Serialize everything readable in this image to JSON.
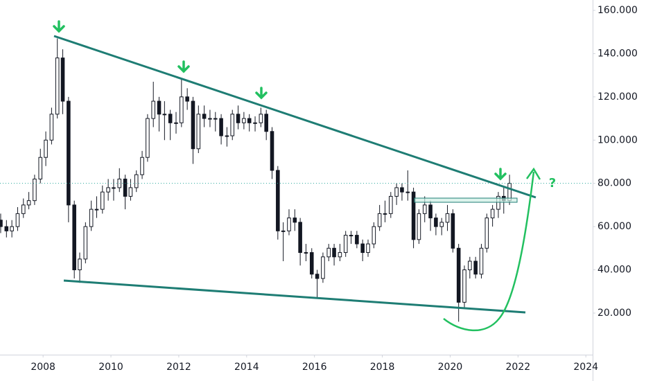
{
  "chart_data": {
    "type": "candlestick",
    "annotation": "?",
    "x": [
      2006.75,
      2006.92,
      2007.08,
      2007.25,
      2007.42,
      2007.58,
      2007.75,
      2007.92,
      2008.08,
      2008.25,
      2008.42,
      2008.58,
      2008.75,
      2008.92,
      2009.08,
      2009.25,
      2009.42,
      2009.58,
      2009.75,
      2009.92,
      2010.08,
      2010.25,
      2010.42,
      2010.58,
      2010.75,
      2010.92,
      2011.08,
      2011.25,
      2011.42,
      2011.58,
      2011.75,
      2011.92,
      2012.08,
      2012.25,
      2012.42,
      2012.58,
      2012.75,
      2012.92,
      2013.08,
      2013.25,
      2013.42,
      2013.58,
      2013.75,
      2013.92,
      2014.08,
      2014.25,
      2014.42,
      2014.58,
      2014.75,
      2014.92,
      2015.08,
      2015.25,
      2015.42,
      2015.58,
      2015.75,
      2015.92,
      2016.08,
      2016.25,
      2016.42,
      2016.58,
      2016.75,
      2016.92,
      2017.08,
      2017.25,
      2017.42,
      2017.58,
      2017.75,
      2017.92,
      2018.08,
      2018.25,
      2018.42,
      2018.58,
      2018.75,
      2018.92,
      2019.08,
      2019.25,
      2019.42,
      2019.58,
      2019.75,
      2019.92,
      2020.08,
      2020.25,
      2020.42,
      2020.58,
      2020.75,
      2020.92,
      2021.08,
      2021.25,
      2021.42,
      2021.58,
      2021.75
    ],
    "open": [
      63,
      60,
      58,
      60,
      66,
      70,
      72,
      82,
      92,
      100,
      112,
      138,
      118,
      70,
      40,
      45,
      60,
      68,
      68,
      76,
      78,
      78,
      82,
      74,
      78,
      84,
      92,
      110,
      118,
      112,
      112,
      108,
      108,
      120,
      118,
      96,
      112,
      110,
      110,
      110,
      102,
      102,
      112,
      108,
      110,
      108,
      108,
      112,
      104,
      86,
      58,
      58,
      64,
      62,
      48,
      48,
      38,
      36,
      46,
      50,
      46,
      48,
      56,
      56,
      52,
      48,
      52,
      60,
      66,
      66,
      74,
      78,
      76,
      76,
      54,
      66,
      70,
      64,
      60,
      62,
      66,
      50,
      25,
      40,
      44,
      38,
      50,
      64,
      68,
      74,
      72
    ],
    "high": [
      66,
      63,
      63,
      69,
      73,
      76,
      84,
      96,
      104,
      115,
      147,
      142,
      120,
      72,
      48,
      62,
      72,
      74,
      79,
      82,
      82,
      87,
      84,
      82,
      86,
      95,
      112,
      127,
      120,
      118,
      114,
      113,
      128,
      124,
      120,
      116,
      116,
      114,
      113,
      112,
      106,
      114,
      116,
      113,
      112,
      111,
      115,
      114,
      106,
      88,
      62,
      68,
      68,
      64,
      52,
      50,
      40,
      48,
      52,
      52,
      52,
      58,
      58,
      58,
      54,
      54,
      62,
      70,
      72,
      76,
      80,
      80,
      86,
      78,
      68,
      74,
      72,
      66,
      64,
      70,
      68,
      52,
      42,
      46,
      46,
      52,
      66,
      70,
      76,
      78,
      84
    ],
    "low": [
      57,
      55,
      55,
      58,
      64,
      68,
      70,
      80,
      88,
      98,
      110,
      112,
      62,
      36,
      34,
      43,
      58,
      64,
      66,
      72,
      72,
      76,
      68,
      72,
      76,
      82,
      90,
      106,
      104,
      100,
      100,
      103,
      106,
      114,
      89,
      94,
      106,
      106,
      104,
      98,
      97,
      100,
      105,
      105,
      104,
      104,
      106,
      100,
      82,
      54,
      44,
      56,
      58,
      42,
      44,
      36,
      27,
      34,
      44,
      42,
      44,
      46,
      52,
      50,
      44,
      46,
      50,
      58,
      62,
      64,
      70,
      72,
      72,
      50,
      52,
      62,
      58,
      56,
      56,
      58,
      48,
      16,
      22,
      36,
      36,
      36,
      48,
      60,
      64,
      66,
      70
    ],
    "close": [
      60,
      58,
      60,
      66,
      70,
      72,
      82,
      92,
      100,
      112,
      138,
      118,
      70,
      40,
      45,
      60,
      68,
      68,
      76,
      78,
      78,
      82,
      74,
      78,
      84,
      92,
      110,
      118,
      112,
      112,
      108,
      108,
      120,
      118,
      96,
      112,
      110,
      110,
      110,
      102,
      102,
      112,
      108,
      110,
      108,
      108,
      112,
      104,
      86,
      58,
      58,
      64,
      62,
      48,
      48,
      38,
      36,
      46,
      50,
      46,
      48,
      56,
      56,
      52,
      48,
      52,
      60,
      66,
      66,
      74,
      78,
      76,
      76,
      54,
      66,
      70,
      64,
      60,
      62,
      66,
      50,
      25,
      40,
      44,
      38,
      50,
      64,
      68,
      74,
      72,
      80
    ],
    "up_color": "#ffffff",
    "down_color": "#131722",
    "edge_color": "#131722",
    "xlim": [
      2006.73,
      2024.2
    ],
    "xticks": [
      2008,
      2010,
      2012,
      2014,
      2016,
      2018,
      2020,
      2022,
      2024
    ],
    "ylim": [
      1.4,
      164.8
    ],
    "yticks": [
      {
        "value": 20,
        "label": "20.000"
      },
      {
        "value": 40,
        "label": "40.000"
      },
      {
        "value": 60,
        "label": "60.000"
      },
      {
        "value": 80,
        "label": "80.000"
      },
      {
        "value": 100,
        "label": "100.000"
      },
      {
        "value": 120,
        "label": "120.000"
      },
      {
        "value": 140,
        "label": "140.000"
      },
      {
        "value": 160,
        "label": "160.000"
      }
    ]
  }
}
